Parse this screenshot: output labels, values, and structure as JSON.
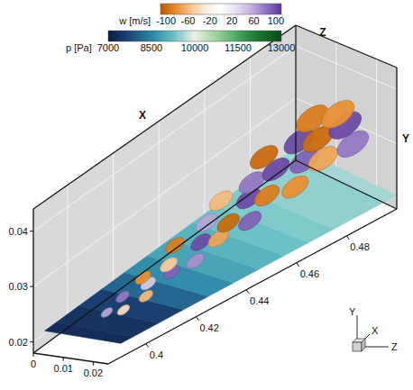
{
  "chart_data": {
    "type": "volume",
    "xlabel": "X",
    "ylabel": "Y",
    "zlabel": "Z",
    "xlim": [
      0.385,
      0.5
    ],
    "xticks": [
      0.4,
      0.42,
      0.44,
      0.46,
      0.48
    ],
    "ylim": [
      0.018,
      0.044
    ],
    "yticks": [
      0.02,
      0.03,
      0.04
    ],
    "zlim": [
      0,
      0.025
    ],
    "zticks": [
      0,
      0.01,
      0.02
    ],
    "grid": true,
    "colorbars": [
      {
        "label": "w [m/s]",
        "range": [
          -110,
          110
        ],
        "ticks": [
          -100,
          -60,
          -20,
          20,
          60,
          100
        ],
        "colors": [
          "#b85a00",
          "#e88a2c",
          "#f6c48e",
          "#fbeee0",
          "#ffffff",
          "#e6e0f2",
          "#bfb0dc",
          "#8f74c0",
          "#5a3597"
        ]
      },
      {
        "label": "p [Pa]",
        "range": [
          7000,
          13000
        ],
        "ticks": [
          7000,
          8500,
          10000,
          11500,
          13000
        ],
        "colors": [
          "#0b1a3e",
          "#1d4a7c",
          "#2b86a6",
          "#63bec4",
          "#eef3e6",
          "#98d09e",
          "#4aa55e",
          "#17702f",
          "#0a4a1e"
        ]
      }
    ],
    "slice": {
      "y": 0.0205,
      "x": [
        0.39,
        0.4,
        0.41,
        0.42,
        0.43,
        0.44,
        0.45,
        0.46,
        0.47,
        0.48,
        0.49,
        0.5
      ],
      "p": [
        7300,
        7400,
        7600,
        8100,
        8600,
        8900,
        9100,
        9300,
        9400,
        9500,
        9500,
        9600
      ]
    },
    "isosurface": {
      "x": [
        0.402,
        0.405,
        0.41,
        0.413,
        0.418,
        0.42,
        0.425,
        0.428,
        0.432,
        0.435,
        0.44,
        0.443,
        0.447,
        0.45,
        0.453,
        0.456,
        0.46,
        0.463,
        0.466,
        0.47,
        0.473,
        0.476,
        0.48,
        0.483,
        0.486,
        0.489,
        0.492,
        0.495,
        0.497,
        0.499
      ],
      "y": [
        0.0215,
        0.0215,
        0.022,
        0.022,
        0.0225,
        0.0225,
        0.023,
        0.023,
        0.0235,
        0.024,
        0.024,
        0.0245,
        0.025,
        0.025,
        0.0255,
        0.026,
        0.0265,
        0.027,
        0.027,
        0.0275,
        0.028,
        0.028,
        0.0285,
        0.029,
        0.029,
        0.0295,
        0.03,
        0.03,
        0.0305,
        0.031
      ],
      "z": [
        0.011,
        0.014,
        0.01,
        0.015,
        0.012,
        0.009,
        0.014,
        0.011,
        0.016,
        0.008,
        0.012,
        0.015,
        0.009,
        0.013,
        0.017,
        0.007,
        0.012,
        0.015,
        0.009,
        0.018,
        0.011,
        0.006,
        0.014,
        0.017,
        0.009,
        0.012,
        0.019,
        0.007,
        0.014,
        0.011
      ],
      "w": [
        60,
        -40,
        80,
        -60,
        40,
        -80,
        90,
        -50,
        70,
        -90,
        100,
        -70,
        60,
        -100,
        90,
        -60,
        100,
        -90,
        80,
        -80,
        100,
        -100,
        90,
        -70,
        100,
        -100,
        80,
        -90,
        100,
        -80
      ]
    },
    "triad": {
      "labels": [
        "X",
        "Y",
        "Z"
      ]
    }
  }
}
